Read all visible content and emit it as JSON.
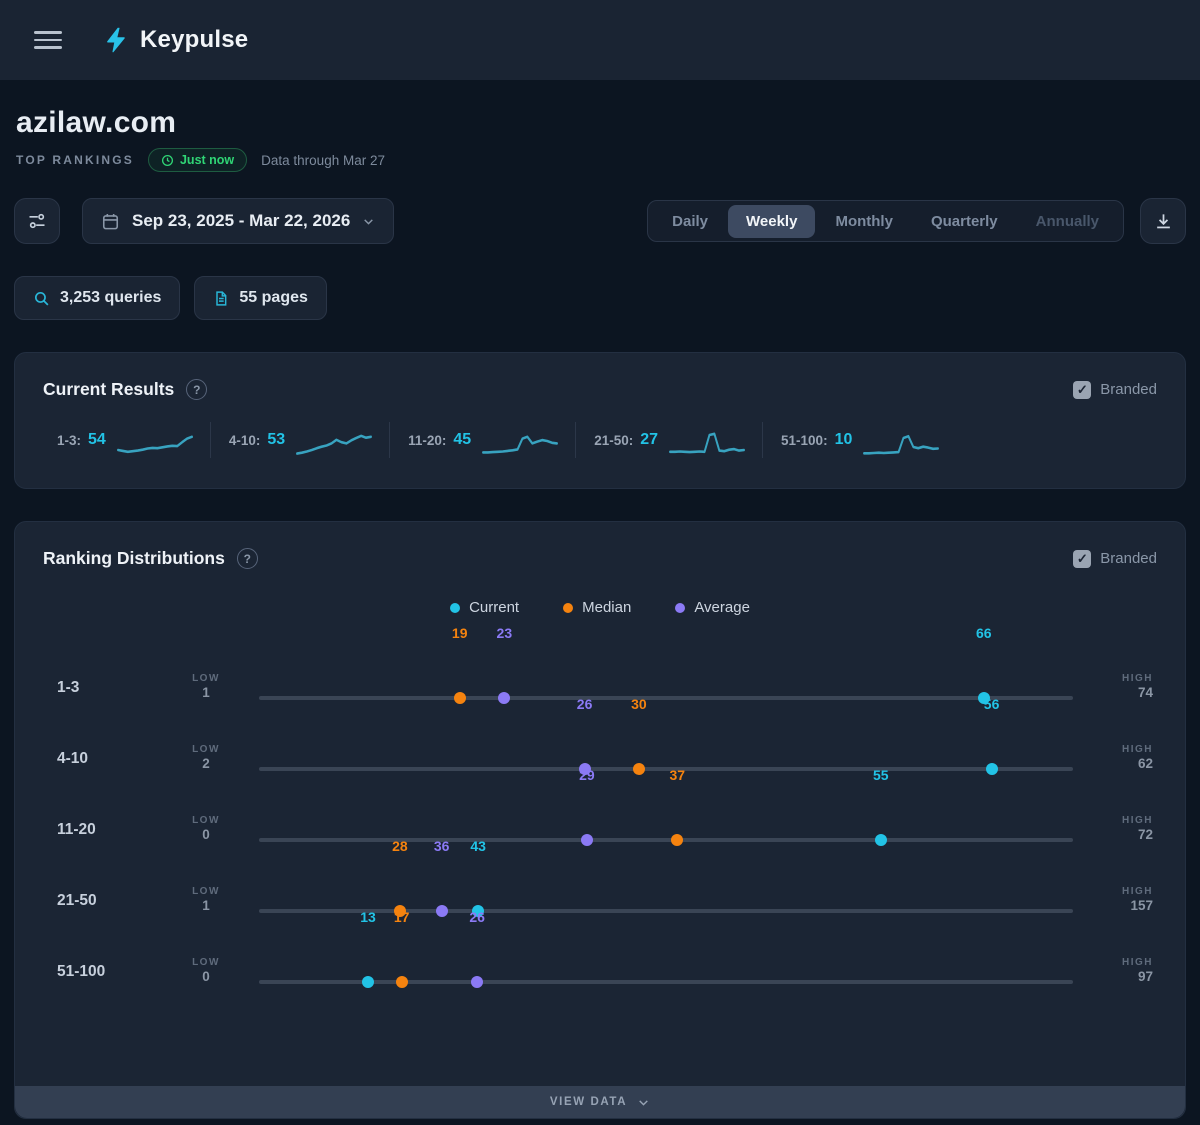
{
  "colors": {
    "accent_cyan": "#22c3e6",
    "median_orange": "#f5830f",
    "average_purple": "#8b7af5",
    "success_green": "#2fd575"
  },
  "topbar": {
    "brand": "Keypulse"
  },
  "page": {
    "title": "azilaw.com",
    "section_label": "TOP RANKINGS",
    "freshness_badge": "Just now",
    "data_through": "Data through Mar 27"
  },
  "controls": {
    "date_range": "Sep 23, 2025 - Mar 22, 2026",
    "tabs": [
      {
        "label": "Daily",
        "state": "normal"
      },
      {
        "label": "Weekly",
        "state": "active"
      },
      {
        "label": "Monthly",
        "state": "normal"
      },
      {
        "label": "Quarterly",
        "state": "normal"
      },
      {
        "label": "Annually",
        "state": "disabled"
      }
    ]
  },
  "chips": {
    "queries": "3,253 queries",
    "pages": "55 pages"
  },
  "current_results": {
    "title": "Current Results",
    "branded_label": "Branded",
    "branded_checked": true,
    "items": [
      {
        "label": "1-3:",
        "value": 54
      },
      {
        "label": "4-10:",
        "value": 53
      },
      {
        "label": "11-20:",
        "value": 45
      },
      {
        "label": "21-50:",
        "value": 27
      },
      {
        "label": "51-100:",
        "value": 10
      }
    ]
  },
  "ranking_distributions": {
    "title": "Ranking Distributions",
    "branded_label": "Branded",
    "branded_checked": true,
    "low_label": "LOW",
    "high_label": "HIGH",
    "view_data_label": "VIEW DATA",
    "legend": [
      {
        "label": "Current",
        "color": "#22c3e6"
      },
      {
        "label": "Median",
        "color": "#f5830f"
      },
      {
        "label": "Average",
        "color": "#8b7af5"
      }
    ]
  },
  "chart_data": [
    {
      "type": "line",
      "title": "Current Results sparklines (weekly trend per ranking bucket)",
      "series": [
        {
          "name": "1-3",
          "current": 54,
          "trend": [
            20,
            17,
            14,
            16,
            18,
            21,
            25,
            27,
            26,
            29,
            32,
            34,
            33,
            46,
            58,
            64
          ]
        },
        {
          "name": "4-10",
          "current": 53,
          "trend": [
            8,
            11,
            15,
            20,
            26,
            31,
            35,
            42,
            54,
            46,
            42,
            52,
            60,
            67,
            61,
            64
          ]
        },
        {
          "name": "11-20",
          "current": 45,
          "trend": [
            12,
            12,
            13,
            14,
            15,
            17,
            19,
            22,
            58,
            64,
            42,
            48,
            53,
            50,
            44,
            42
          ]
        },
        {
          "name": "21-50",
          "current": 27,
          "trend": [
            14,
            14,
            15,
            14,
            13,
            14,
            15,
            14,
            70,
            74,
            18,
            16,
            21,
            23,
            18,
            20
          ]
        },
        {
          "name": "51-100",
          "current": 10,
          "trend": [
            9,
            9,
            10,
            11,
            10,
            11,
            12,
            13,
            60,
            66,
            30,
            26,
            31,
            28,
            24,
            25
          ]
        }
      ]
    },
    {
      "type": "scatter",
      "title": "Ranking Distributions (low/high range with current, median, average markers)",
      "rows": [
        {
          "range": "1-3",
          "low": 1,
          "high": 74,
          "current": 66,
          "median": 19,
          "average": 23
        },
        {
          "range": "4-10",
          "low": 2,
          "high": 62,
          "current": 56,
          "median": 30,
          "average": 26
        },
        {
          "range": "11-20",
          "low": 0,
          "high": 72,
          "current": 55,
          "median": 37,
          "average": 29
        },
        {
          "range": "21-50",
          "low": 1,
          "high": 157,
          "current": 43,
          "median": 28,
          "average": 36
        },
        {
          "range": "51-100",
          "low": 0,
          "high": 97,
          "current": 13,
          "median": 17,
          "average": 26
        }
      ]
    }
  ]
}
